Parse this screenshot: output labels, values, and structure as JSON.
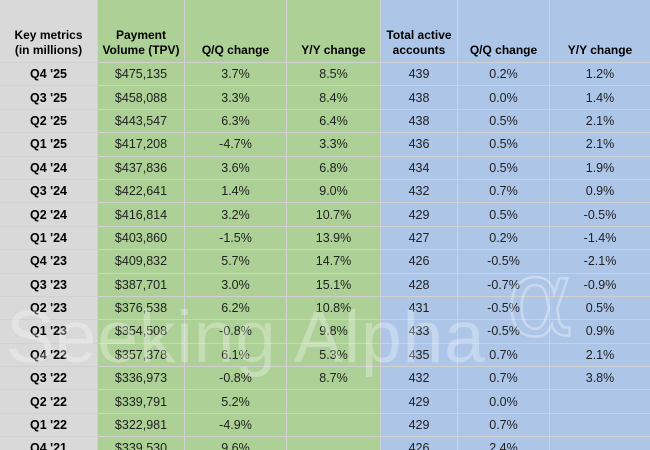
{
  "watermark": {
    "brand": "Seeking Alpha",
    "alpha_symbol": "α"
  },
  "colors": {
    "green_cells": "#acd095",
    "blue_cells": "#adc6e8",
    "gray_cells": "#d9d9d9",
    "gridline": "#d1d1d1"
  },
  "table": {
    "header": {
      "metrics_line1": "Key metrics",
      "metrics_line2": "(in millions)",
      "tpv": "Payment Volume (TPV)",
      "tpv_qq": "Q/Q change",
      "tpv_yy": "Y/Y change",
      "accounts": "Total active accounts",
      "acct_qq": "Q/Q change",
      "acct_yy": "Y/Y change"
    },
    "rows": [
      {
        "label": "Q4 '25",
        "tpv": "$475,135",
        "tpv_qq": "3.7%",
        "tpv_yy": "8.5%",
        "accounts": "439",
        "acct_qq": "0.2%",
        "acct_yy": "1.2%"
      },
      {
        "label": "Q3 '25",
        "tpv": "$458,088",
        "tpv_qq": "3.3%",
        "tpv_yy": "8.4%",
        "accounts": "438",
        "acct_qq": "0.0%",
        "acct_yy": "1.4%"
      },
      {
        "label": "Q2 '25",
        "tpv": "$443,547",
        "tpv_qq": "6.3%",
        "tpv_yy": "6.4%",
        "accounts": "438",
        "acct_qq": "0.5%",
        "acct_yy": "2.1%"
      },
      {
        "label": "Q1 '25",
        "tpv": "$417,208",
        "tpv_qq": "-4.7%",
        "tpv_yy": "3.3%",
        "accounts": "436",
        "acct_qq": "0.5%",
        "acct_yy": "2.1%"
      },
      {
        "label": "Q4 '24",
        "tpv": "$437,836",
        "tpv_qq": "3.6%",
        "tpv_yy": "6.8%",
        "accounts": "434",
        "acct_qq": "0.5%",
        "acct_yy": "1.9%"
      },
      {
        "label": "Q3 '24",
        "tpv": "$422,641",
        "tpv_qq": "1.4%",
        "tpv_yy": "9.0%",
        "accounts": "432",
        "acct_qq": "0.7%",
        "acct_yy": "0.9%"
      },
      {
        "label": "Q2 '24",
        "tpv": "$416,814",
        "tpv_qq": "3.2%",
        "tpv_yy": "10.7%",
        "accounts": "429",
        "acct_qq": "0.5%",
        "acct_yy": "-0.5%"
      },
      {
        "label": "Q1 '24",
        "tpv": "$403,860",
        "tpv_qq": "-1.5%",
        "tpv_yy": "13.9%",
        "accounts": "427",
        "acct_qq": "0.2%",
        "acct_yy": "-1.4%"
      },
      {
        "label": "Q4 '23",
        "tpv": "$409,832",
        "tpv_qq": "5.7%",
        "tpv_yy": "14.7%",
        "accounts": "426",
        "acct_qq": "-0.5%",
        "acct_yy": "-2.1%"
      },
      {
        "label": "Q3 '23",
        "tpv": "$387,701",
        "tpv_qq": "3.0%",
        "tpv_yy": "15.1%",
        "accounts": "428",
        "acct_qq": "-0.7%",
        "acct_yy": "-0.9%"
      },
      {
        "label": "Q2 '23",
        "tpv": "$376,538",
        "tpv_qq": "6.2%",
        "tpv_yy": "10.8%",
        "accounts": "431",
        "acct_qq": "-0.5%",
        "acct_yy": "0.5%"
      },
      {
        "label": "Q1 '23",
        "tpv": "$354,508",
        "tpv_qq": "-0.8%",
        "tpv_yy": "9.8%",
        "accounts": "433",
        "acct_qq": "-0.5%",
        "acct_yy": "0.9%"
      },
      {
        "label": "Q4 '22",
        "tpv": "$357,378",
        "tpv_qq": "6.1%",
        "tpv_yy": "5.3%",
        "accounts": "435",
        "acct_qq": "0.7%",
        "acct_yy": "2.1%"
      },
      {
        "label": "Q3 '22",
        "tpv": "$336,973",
        "tpv_qq": "-0.8%",
        "tpv_yy": "8.7%",
        "accounts": "432",
        "acct_qq": "0.7%",
        "acct_yy": "3.8%"
      },
      {
        "label": "Q2 '22",
        "tpv": "$339,791",
        "tpv_qq": "5.2%",
        "tpv_yy": "",
        "accounts": "429",
        "acct_qq": "0.0%",
        "acct_yy": ""
      },
      {
        "label": "Q1 '22",
        "tpv": "$322,981",
        "tpv_qq": "-4.9%",
        "tpv_yy": "",
        "accounts": "429",
        "acct_qq": "0.7%",
        "acct_yy": ""
      },
      {
        "label": "Q4 '21",
        "tpv": "$339,530",
        "tpv_qq": "9.6%",
        "tpv_yy": "",
        "accounts": "426",
        "acct_qq": "2.4%",
        "acct_yy": ""
      }
    ]
  }
}
